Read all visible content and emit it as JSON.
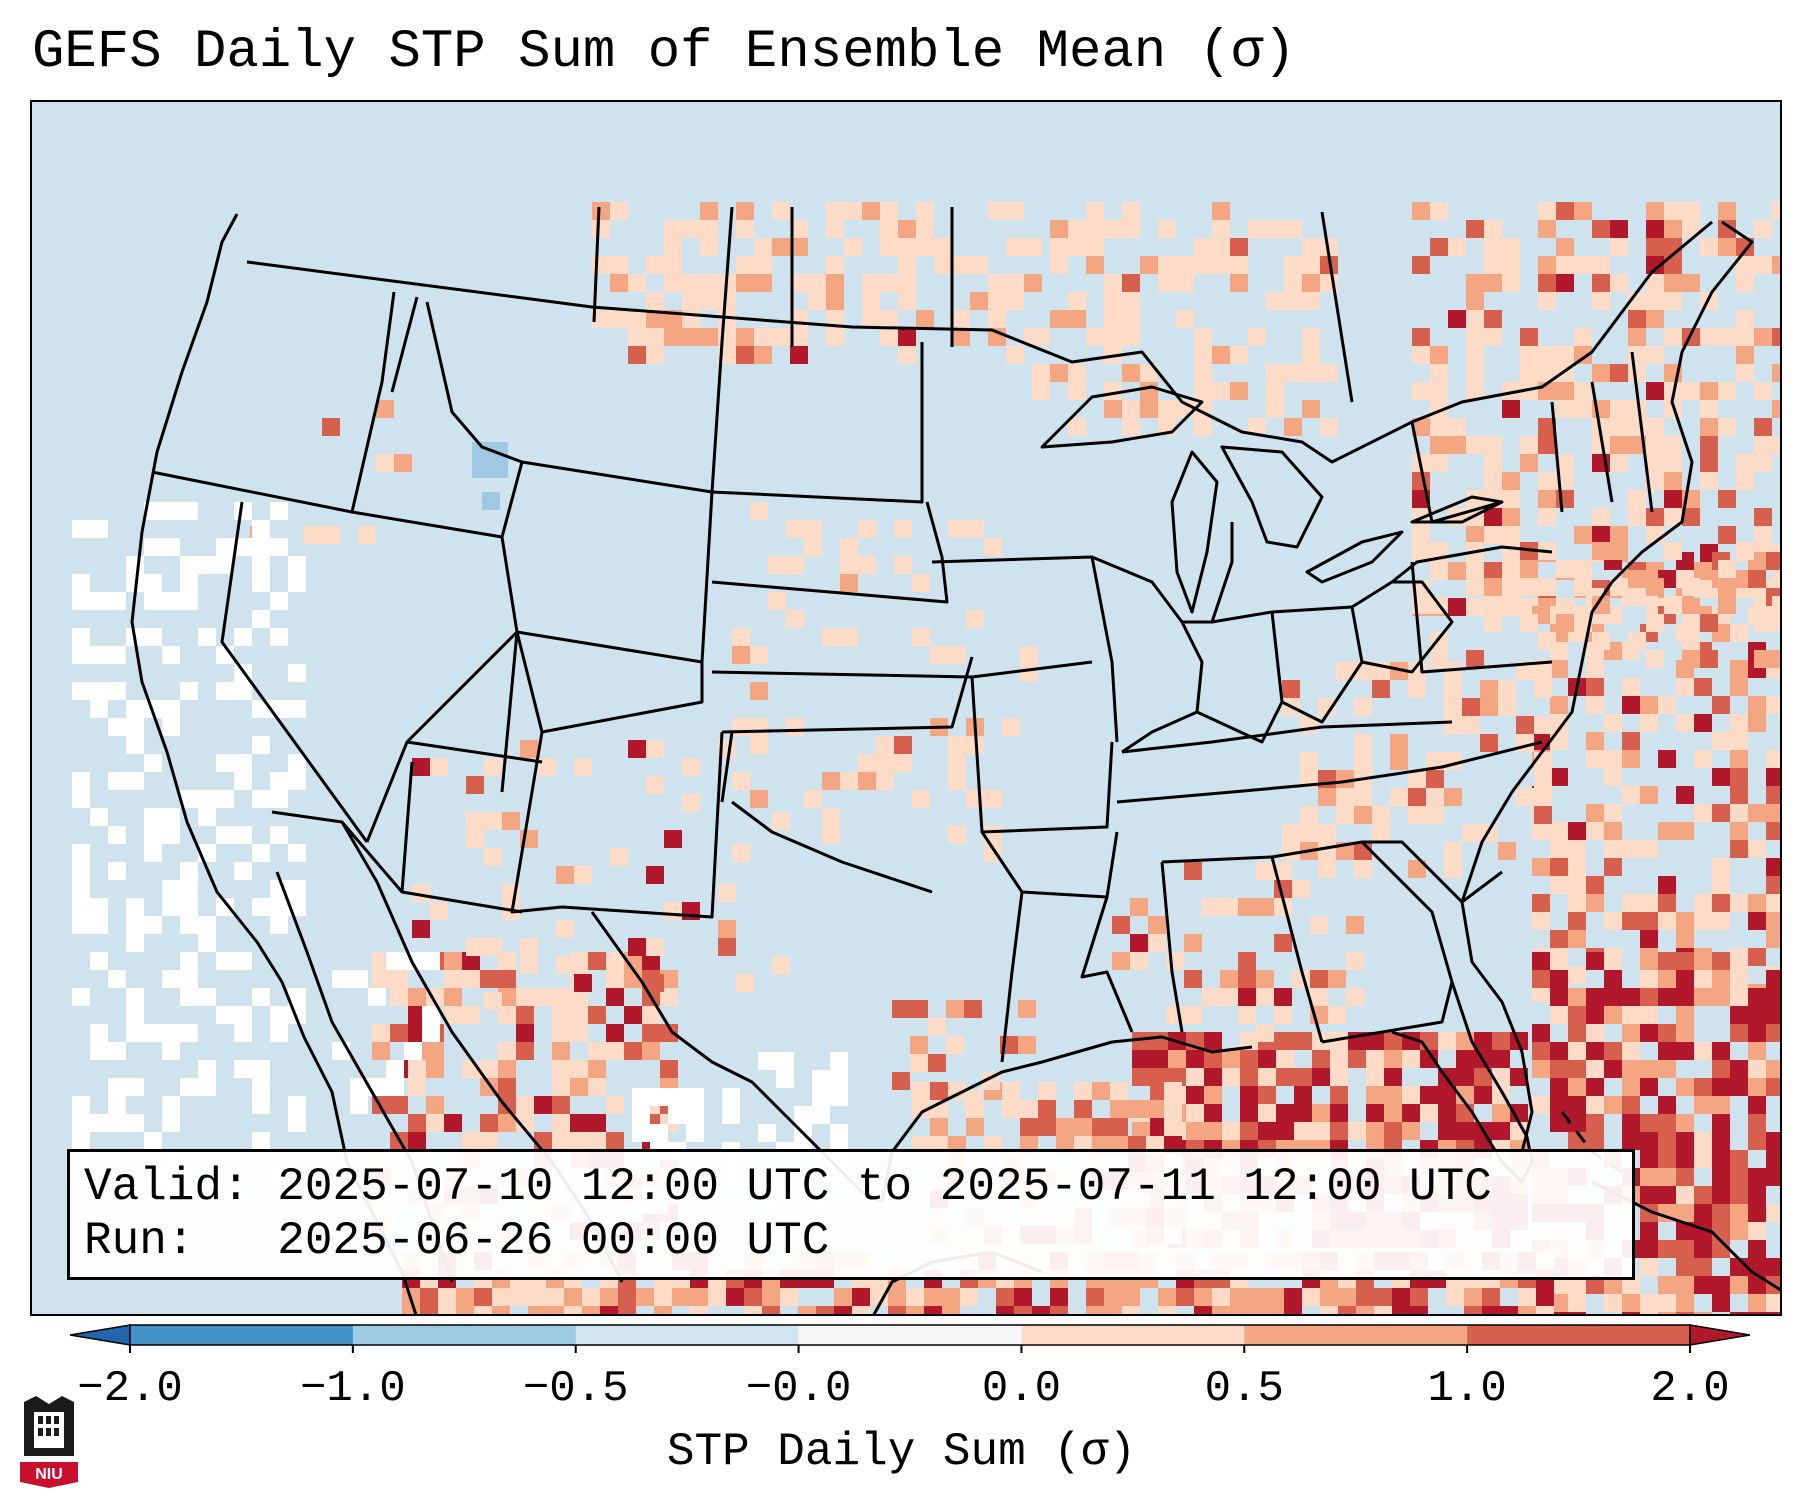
{
  "title": "GEFS Daily STP Sum of Ensemble Mean (σ)",
  "info": {
    "valid_label": "Valid:",
    "valid_value": "2025-07-10 12:00 UTC to 2025-07-11 12:00 UTC",
    "run_label": "Run:",
    "run_value": "2025-06-26 00:00 UTC"
  },
  "colorbar": {
    "label": "STP Daily Sum (σ)",
    "tick_labels": [
      "−2.0",
      "−1.0",
      "−0.5",
      "−0.0",
      "0.0",
      "0.5",
      "1.0",
      "2.0"
    ],
    "bins": [
      {
        "from": -2.0,
        "to": -1.0,
        "color": "#4292c6"
      },
      {
        "from": -1.0,
        "to": -0.5,
        "color": "#9ecae1"
      },
      {
        "from": -0.5,
        "to": -0.0,
        "color": "#d1e5f0"
      },
      {
        "from": -0.0,
        "to": 0.0,
        "color": "#f7f7f7"
      },
      {
        "from": 0.0,
        "to": 0.5,
        "color": "#fddbc7"
      },
      {
        "from": 0.5,
        "to": 1.0,
        "color": "#f4a582"
      },
      {
        "from": 1.0,
        "to": 2.0,
        "color": "#d6604d"
      }
    ],
    "under_color": "#2166ac",
    "over_color": "#b2182b"
  },
  "map": {
    "ocean_color": "#cfe3ef",
    "region": "Continental United States, northern Mexico, southern Canada, Gulf of Mexico, Caribbean"
  },
  "logo": {
    "text": "NIU"
  }
}
